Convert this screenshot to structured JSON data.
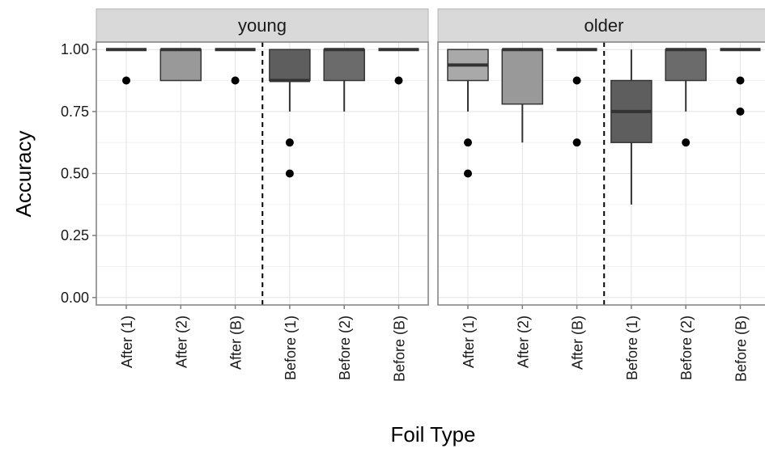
{
  "chart_data": {
    "type": "boxplot",
    "xlabel": "Foil Type",
    "ylabel": "Accuracy",
    "ylim": [
      -0.03,
      1.03
    ],
    "y_ticks": [
      "0.00",
      "0.25",
      "0.50",
      "0.75",
      "1.00"
    ],
    "categories": [
      "After (1)",
      "After (2)",
      "After (B)",
      "Before (1)",
      "Before (2)",
      "Before (B)"
    ],
    "fill_colors": {
      "After (1)": "#a9a9a9",
      "After (2)": "#999999",
      "After (B)": "#8a8a8a",
      "Before (1)": "#5e5e5e",
      "Before (2)": "#6b6b6b",
      "Before (B)": "#4e4e4e"
    },
    "separator_after_category_index": 2,
    "grid": true,
    "panels": [
      {
        "strip": "young",
        "boxes": [
          {
            "category": "After (1)",
            "min": 1.0,
            "q1": 1.0,
            "median": 1.0,
            "q3": 1.0,
            "max": 1.0,
            "outliers": [
              0.875
            ]
          },
          {
            "category": "After (2)",
            "min": 0.875,
            "q1": 0.875,
            "median": 1.0,
            "q3": 1.0,
            "max": 1.0,
            "outliers": []
          },
          {
            "category": "After (B)",
            "min": 1.0,
            "q1": 1.0,
            "median": 1.0,
            "q3": 1.0,
            "max": 1.0,
            "outliers": [
              0.875
            ]
          },
          {
            "category": "Before (1)",
            "min": 0.75,
            "q1": 0.875,
            "median": 0.875,
            "q3": 1.0,
            "max": 1.0,
            "outliers": [
              0.625,
              0.5
            ]
          },
          {
            "category": "Before (2)",
            "min": 0.75,
            "q1": 0.875,
            "median": 1.0,
            "q3": 1.0,
            "max": 1.0,
            "outliers": []
          },
          {
            "category": "Before (B)",
            "min": 1.0,
            "q1": 1.0,
            "median": 1.0,
            "q3": 1.0,
            "max": 1.0,
            "outliers": [
              0.875
            ]
          }
        ]
      },
      {
        "strip": "older",
        "boxes": [
          {
            "category": "After (1)",
            "min": 0.75,
            "q1": 0.875,
            "median": 0.9375,
            "q3": 1.0,
            "max": 1.0,
            "outliers": [
              0.625,
              0.5
            ]
          },
          {
            "category": "After (2)",
            "min": 0.625,
            "q1": 0.78,
            "median": 1.0,
            "q3": 1.0,
            "max": 1.0,
            "outliers": []
          },
          {
            "category": "After (B)",
            "min": 1.0,
            "q1": 1.0,
            "median": 1.0,
            "q3": 1.0,
            "max": 1.0,
            "outliers": [
              0.875,
              0.625
            ]
          },
          {
            "category": "Before (1)",
            "min": 0.375,
            "q1": 0.625,
            "median": 0.75,
            "q3": 0.875,
            "max": 1.0,
            "outliers": []
          },
          {
            "category": "Before (2)",
            "min": 0.75,
            "q1": 0.875,
            "median": 1.0,
            "q3": 1.0,
            "max": 1.0,
            "outliers": [
              0.625
            ]
          },
          {
            "category": "Before (B)",
            "min": 1.0,
            "q1": 1.0,
            "median": 1.0,
            "q3": 1.0,
            "max": 1.0,
            "outliers": [
              0.875,
              0.75
            ]
          }
        ]
      }
    ]
  }
}
